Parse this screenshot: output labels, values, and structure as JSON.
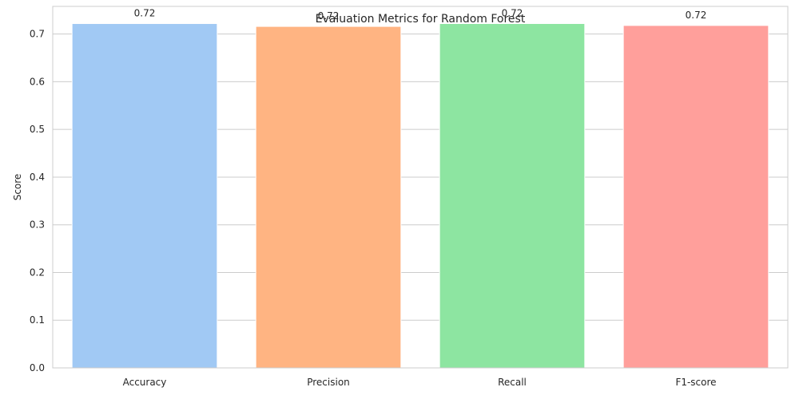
{
  "chart_data": {
    "type": "bar",
    "title": "Evaluation Metrics for Random Forest",
    "xlabel": "",
    "ylabel": "Score",
    "categories": [
      "Accuracy",
      "Precision",
      "Recall",
      "F1-score"
    ],
    "values": [
      0.722,
      0.716,
      0.722,
      0.718
    ],
    "data_labels": [
      "0.72",
      "0.72",
      "0.72",
      "0.72"
    ],
    "colors": [
      "#a1c9f4",
      "#ffb482",
      "#8de5a1",
      "#ff9f9b"
    ],
    "ylim": [
      0,
      0.758
    ],
    "yticks": [
      0.0,
      0.1,
      0.2,
      0.3,
      0.4,
      0.5,
      0.6,
      0.7
    ],
    "ytick_labels": [
      "0.0",
      "0.1",
      "0.2",
      "0.3",
      "0.4",
      "0.5",
      "0.6",
      "0.7"
    ],
    "grid": true,
    "legend": "none"
  }
}
